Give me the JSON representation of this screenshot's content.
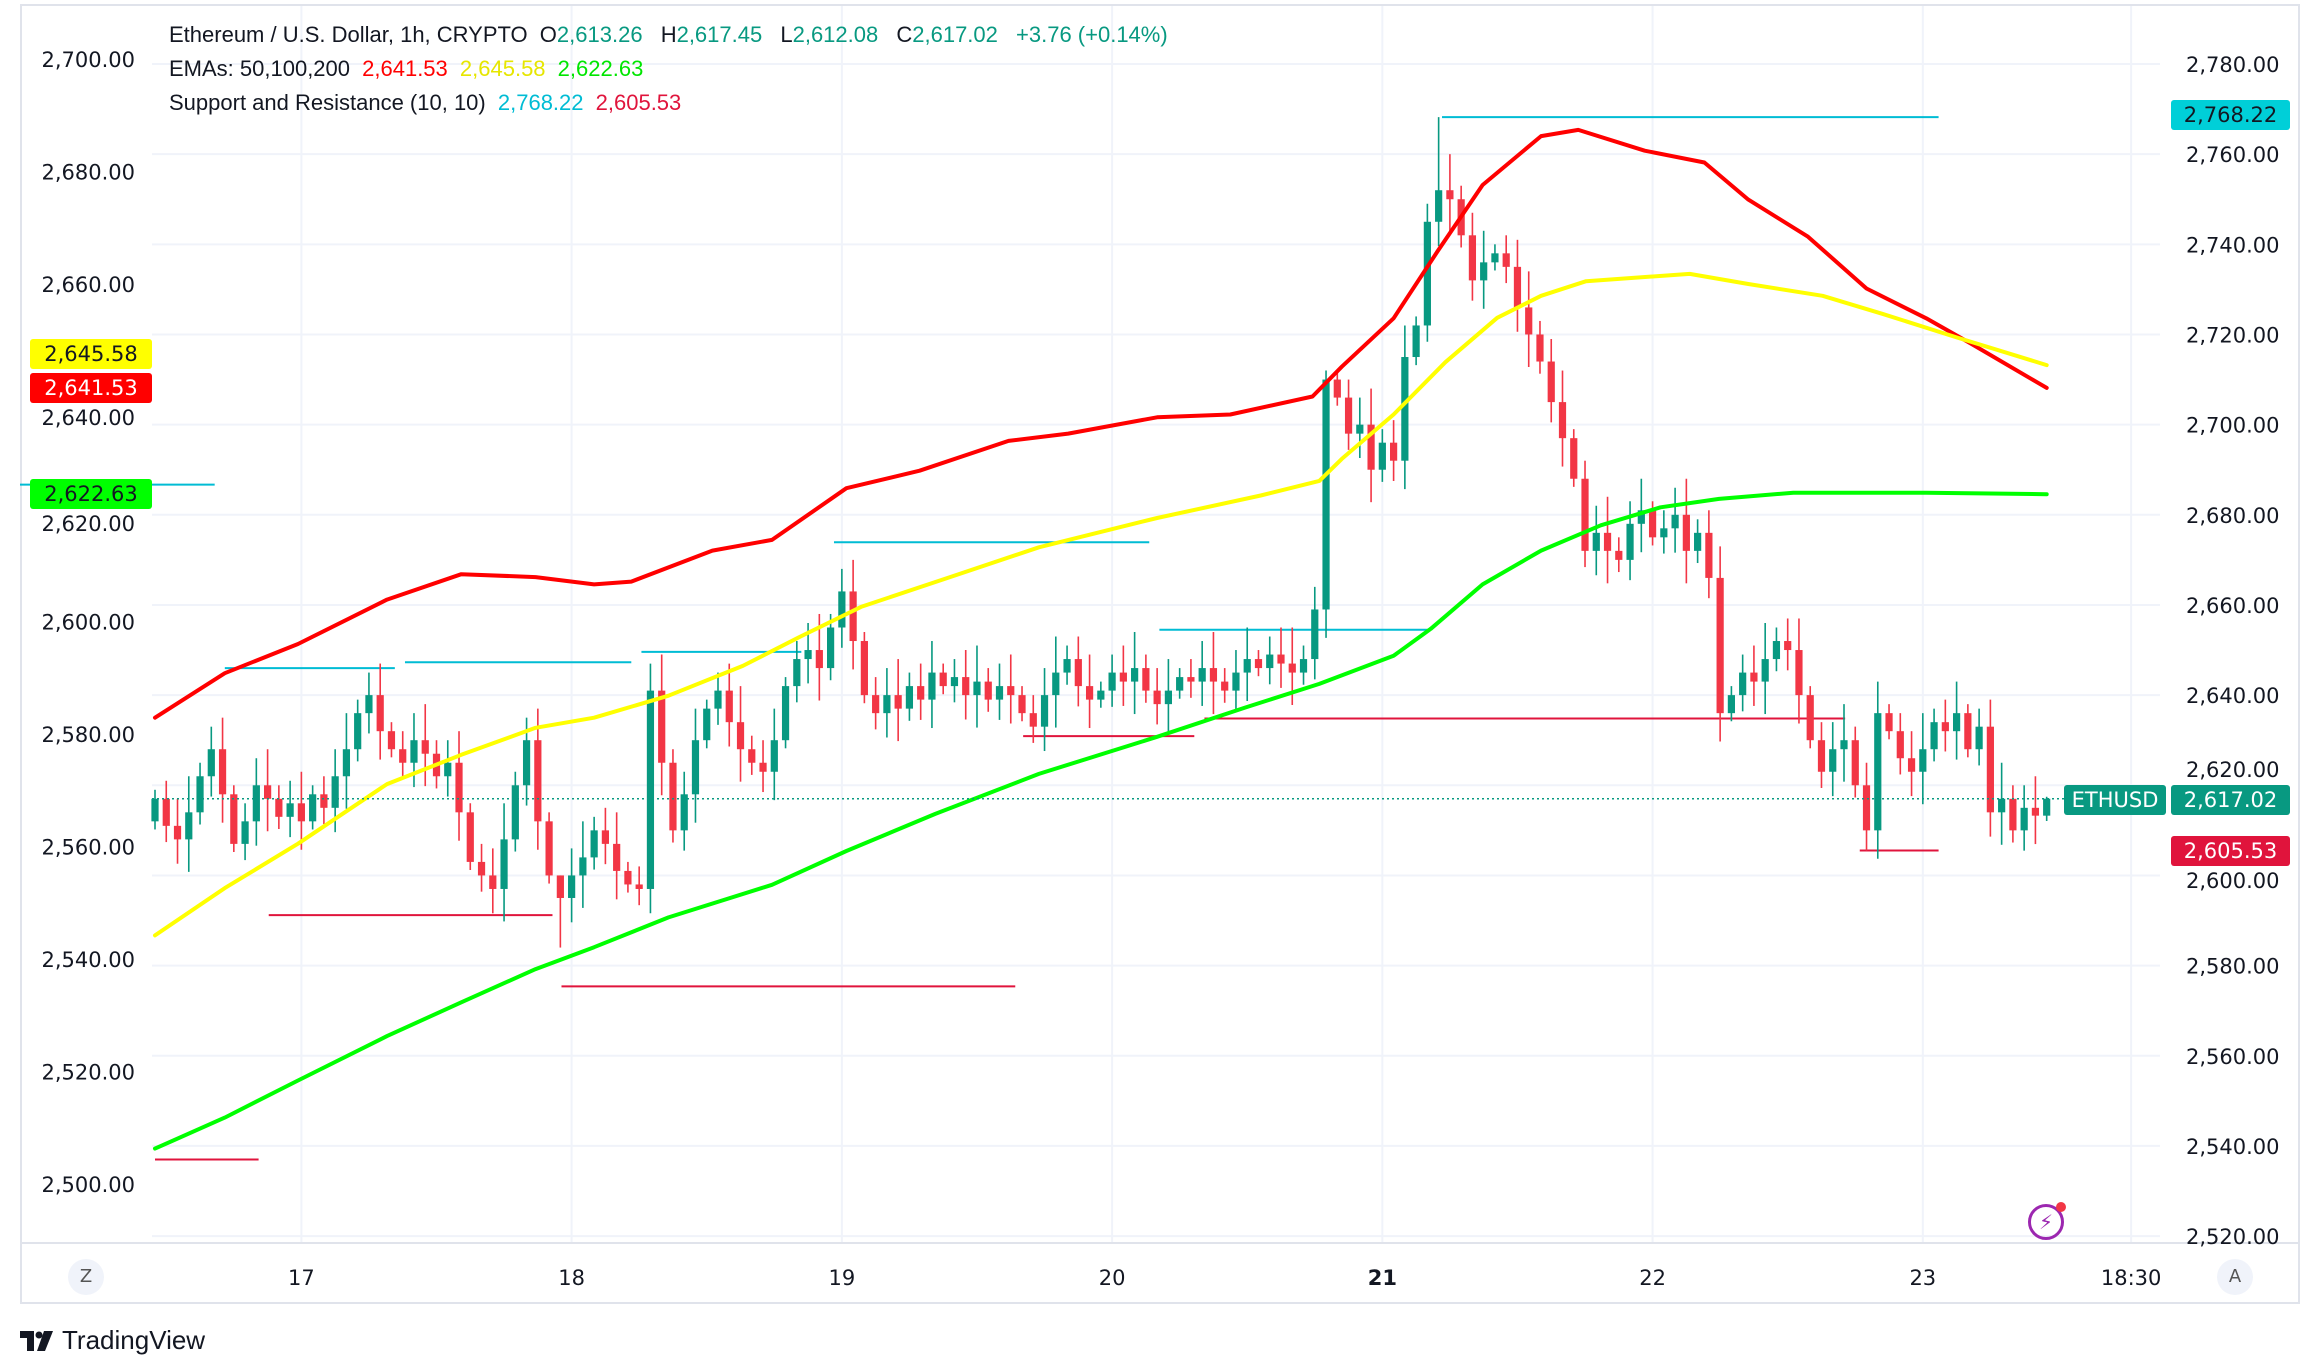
{
  "header": {
    "symbol_line": "Ethereum / U.S. Dollar, 1h, CRYPTO",
    "open_prefix": "O",
    "open": "2,613.26",
    "high_prefix": "H",
    "high": "2,617.45",
    "low_prefix": "L",
    "low": "2,612.08",
    "close_prefix": "C",
    "close": "2,617.02",
    "change": "+3.76 (+0.14%)",
    "ema_label": "EMAs: 50,100,200",
    "ema50": "2,641.53",
    "ema100": "2,645.58",
    "ema200": "2,622.63",
    "sr_label": "Support and Resistance (10, 10)",
    "resistance": "2,768.22",
    "support": "2,605.53"
  },
  "price_labels": {
    "left_ema100": "2,645.58",
    "left_ema50": "2,641.53",
    "left_ema200": "2,622.63",
    "right_resistance": "2,768.22",
    "symbol": "ETHUSD",
    "right_last": "2,617.02",
    "right_support": "2,605.53"
  },
  "buttons": {
    "left_scale": "Z",
    "right_scale": "A"
  },
  "branding": {
    "logo_text": "TradingView",
    "logo_mark": "TV"
  },
  "colors": {
    "up": "#089981",
    "down": "#f23645",
    "ema50": "#ff0000",
    "ema100": "#ffff00",
    "ema200": "#00ff00",
    "resistance": "#00bcd4",
    "support": "#e0143c"
  },
  "chart_data": {
    "type": "candlestick",
    "title": "Ethereum / U.S. Dollar, 1h, CRYPTO",
    "first_open": 2612,
    "closes": [
      2617,
      2611,
      2608,
      2614,
      2622,
      2628,
      2618,
      2607,
      2612,
      2620,
      2617,
      2613,
      2616,
      2612,
      2618,
      2615,
      2622,
      2628,
      2636,
      2640,
      2632,
      2628,
      2625,
      2630,
      2627,
      2622,
      2625,
      2614,
      2603,
      2600,
      2597,
      2608,
      2620,
      2630,
      2612,
      2600,
      2595,
      2600,
      2604,
      2610,
      2607,
      2601,
      2598,
      2597,
      2641,
      2625,
      2610,
      2618,
      2630,
      2637,
      2641,
      2634,
      2628,
      2625,
      2623,
      2630,
      2642,
      2648,
      2650,
      2646,
      2655,
      2663,
      2652,
      2640,
      2636,
      2640,
      2637,
      2642,
      2639,
      2645,
      2642,
      2644,
      2640,
      2643,
      2639,
      2642,
      2640,
      2636,
      2633,
      2640,
      2645,
      2648,
      2642,
      2639,
      2641,
      2645,
      2643,
      2646,
      2641,
      2638,
      2641,
      2644,
      2643,
      2646,
      2643,
      2641,
      2645,
      2648,
      2646,
      2649,
      2647,
      2645,
      2648,
      2659,
      2710,
      2706,
      2698,
      2700,
      2690,
      2696,
      2692,
      2715,
      2722,
      2745,
      2752,
      2750,
      2742,
      2732,
      2736,
      2738,
      2735,
      2726,
      2720,
      2714,
      2705,
      2697,
      2688,
      2672,
      2676,
      2672,
      2670,
      2678,
      2681,
      2675,
      2677,
      2680,
      2672,
      2676,
      2666,
      2636,
      2640,
      2645,
      2643,
      2648,
      2652,
      2650,
      2640,
      2630,
      2623,
      2628,
      2630,
      2620,
      2610,
      2636,
      2632,
      2626,
      2623,
      2628,
      2634,
      2632,
      2636,
      2628,
      2633,
      2614,
      2617,
      2610,
      2615,
      2613.26,
      2617.02
    ],
    "extreme_highs": {
      "36": 2600,
      "104": 2712,
      "114": 2768.22,
      "168": 2617.45
    },
    "extreme_lows": {
      "36": 2584,
      "152": 2605.53,
      "168": 2612.08
    },
    "ema_series": [
      {
        "name": "EMA 50",
        "color_key": "ema50",
        "points": [
          [
            0,
            2582.9
          ],
          [
            6.2,
            2590.8
          ],
          [
            12.7,
            2596.0
          ],
          [
            20.6,
            2603.9
          ],
          [
            27.2,
            2608.4
          ],
          [
            33.8,
            2607.9
          ],
          [
            39,
            2606.6
          ],
          [
            42.3,
            2607.1
          ],
          [
            49.5,
            2612.6
          ],
          [
            54.8,
            2614.5
          ],
          [
            61.4,
            2623.7
          ],
          [
            67.9,
            2626.8
          ],
          [
            75.8,
            2632.1
          ],
          [
            81.1,
            2633.4
          ],
          [
            89,
            2636.3
          ],
          [
            95.5,
            2636.8
          ],
          [
            102.8,
            2640.0
          ],
          [
            105.4,
            2645.3
          ],
          [
            110,
            2653.9
          ],
          [
            113.9,
            2665.8
          ],
          [
            117.9,
            2677.6
          ],
          [
            123.1,
            2686.3
          ],
          [
            126.4,
            2687.4
          ],
          [
            132.3,
            2683.7
          ],
          [
            137.6,
            2681.6
          ],
          [
            141.5,
            2675.0
          ],
          [
            146.8,
            2668.4
          ],
          [
            152,
            2659.2
          ],
          [
            157.3,
            2653.9
          ],
          [
            161.2,
            2649.5
          ],
          [
            168,
            2641.53
          ]
        ]
      },
      {
        "name": "EMA 100",
        "color_key": "ema100",
        "points": [
          [
            0,
            2544.2
          ],
          [
            6.2,
            2552.6
          ],
          [
            12.7,
            2560.5
          ],
          [
            20.6,
            2571.1
          ],
          [
            27.2,
            2576.3
          ],
          [
            33.8,
            2581.1
          ],
          [
            39,
            2582.9
          ],
          [
            45.6,
            2586.8
          ],
          [
            52.2,
            2592.1
          ],
          [
            57.4,
            2597.4
          ],
          [
            62.7,
            2602.6
          ],
          [
            70.6,
            2607.9
          ],
          [
            78.5,
            2613.2
          ],
          [
            89,
            2618.4
          ],
          [
            98.2,
            2622.4
          ],
          [
            103.4,
            2625.0
          ],
          [
            105.4,
            2628.9
          ],
          [
            110,
            2636.8
          ],
          [
            114.6,
            2646.1
          ],
          [
            119.2,
            2654.0
          ],
          [
            123.1,
            2657.9
          ],
          [
            127.1,
            2660.5
          ],
          [
            136.3,
            2661.8
          ],
          [
            141.5,
            2660.0
          ],
          [
            148.1,
            2657.9
          ],
          [
            153.4,
            2654.7
          ],
          [
            160,
            2650.5
          ],
          [
            168,
            2645.58
          ]
        ]
      },
      {
        "name": "EMA 200",
        "color_key": "ema200",
        "points": [
          [
            0,
            2506.3
          ],
          [
            6.2,
            2511.8
          ],
          [
            12.7,
            2518.4
          ],
          [
            20.6,
            2526.3
          ],
          [
            27.2,
            2532.3
          ],
          [
            33.8,
            2538.2
          ],
          [
            39,
            2542.1
          ],
          [
            45.6,
            2547.4
          ],
          [
            54.8,
            2553.2
          ],
          [
            61.4,
            2559.2
          ],
          [
            69.3,
            2565.8
          ],
          [
            78.5,
            2572.9
          ],
          [
            89,
            2579.5
          ],
          [
            96.8,
            2584.7
          ],
          [
            103.4,
            2588.9
          ],
          [
            110,
            2593.9
          ],
          [
            113.3,
            2598.7
          ],
          [
            117.9,
            2606.6
          ],
          [
            123.1,
            2612.6
          ],
          [
            128.4,
            2617.1
          ],
          [
            133.7,
            2620.3
          ],
          [
            138.9,
            2621.8
          ],
          [
            145.5,
            2622.9
          ],
          [
            157.3,
            2622.9
          ],
          [
            168,
            2622.63
          ]
        ]
      }
    ],
    "resistance_segments": [
      [
        -17,
        5.3,
        2686.7
      ],
      [
        6.2,
        21.3,
        2646.0
      ],
      [
        22.2,
        42.3,
        2647.3
      ],
      [
        43.2,
        57.4,
        2649.6
      ],
      [
        60.3,
        88.3,
        2673.9
      ],
      [
        89.2,
        113.3,
        2654.5
      ],
      [
        114.3,
        158.4,
        2768.22
      ]
    ],
    "support_segments": [
      [
        0,
        9.2,
        2537.0
      ],
      [
        10.1,
        35.3,
        2591.2
      ],
      [
        36.1,
        76.4,
        2575.4
      ],
      [
        77.1,
        92.3,
        2630.9
      ],
      [
        93.2,
        150.1,
        2634.8
      ],
      [
        151.4,
        158.4,
        2605.53
      ]
    ],
    "right_axis": {
      "ticks": [
        "2,780.00",
        "2,760.00",
        "2,740.00",
        "2,720.00",
        "2,700.00",
        "2,680.00",
        "2,660.00",
        "2,640.00",
        "2,620.00",
        "2,600.00",
        "2,580.00",
        "2,560.00",
        "2,540.00",
        "2,520.00"
      ],
      "values": [
        2780,
        2760,
        2740,
        2720,
        2700,
        2680,
        2660,
        2640,
        2620,
        2600,
        2580,
        2560,
        2540,
        2520
      ]
    },
    "left_axis": {
      "ticks": [
        "2,700.00",
        "2,680.00",
        "2,660.00",
        "2,640.00",
        "2,620.00",
        "2,600.00",
        "2,580.00",
        "2,560.00",
        "2,540.00",
        "2,520.00",
        "2,500.00"
      ],
      "values": [
        2700,
        2680,
        2660,
        2640,
        2620,
        2600,
        2580,
        2560,
        2540,
        2520,
        2500
      ]
    },
    "x_axis": {
      "ticks": [
        "17",
        "18",
        "19",
        "20",
        "21",
        "22",
        "23",
        "18:30"
      ],
      "hour_index": [
        13,
        37,
        61,
        85,
        109,
        133,
        157,
        175.5
      ],
      "bold": [
        false,
        false,
        false,
        false,
        true,
        false,
        false,
        false
      ]
    },
    "last_price": 2617.02
  }
}
